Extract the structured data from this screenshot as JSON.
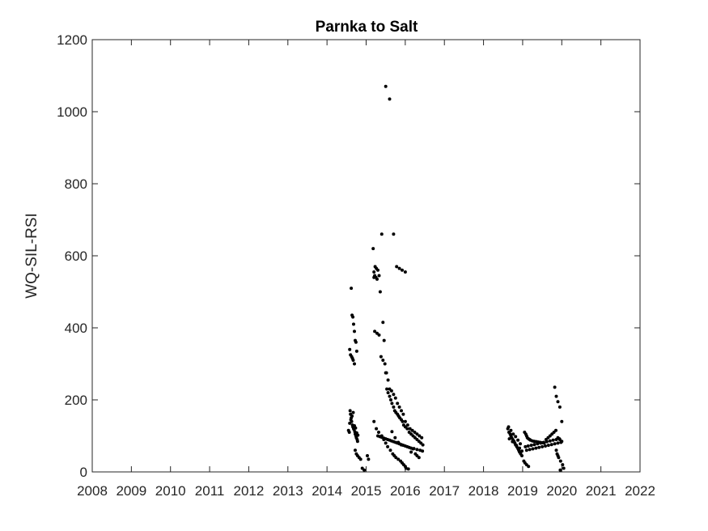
{
  "chart_data": {
    "type": "scatter",
    "title": "Parnka to Salt",
    "xlabel": "",
    "ylabel": "WQ-SIL-RSI",
    "xlim": [
      2008,
      2022
    ],
    "ylim": [
      0,
      1200
    ],
    "x_ticks": [
      "2008",
      "2009",
      "2010",
      "2011",
      "2012",
      "2013",
      "2014",
      "2015",
      "2016",
      "2017",
      "2018",
      "2019",
      "2020",
      "2021",
      "2022"
    ],
    "y_ticks": [
      "0",
      "200",
      "400",
      "600",
      "800",
      "1000",
      "1200"
    ],
    "grid": false,
    "legend": "none",
    "marker_color": "#000000",
    "series": [
      {
        "x": [
          2014.55,
          2014.57,
          2014.59,
          2014.6,
          2014.62,
          2014.63,
          2014.65,
          2014.66,
          2014.68,
          2014.69,
          2014.71,
          2014.72,
          2014.74,
          2014.75,
          2014.77,
          2014.78,
          2014.58,
          2014.61,
          2014.64,
          2014.67,
          2014.7,
          2014.73,
          2014.76,
          2014.79,
          2014.62,
          2014.64,
          2014.66,
          2014.68,
          2014.7,
          2014.72,
          2014.74,
          2014.76,
          2014.58,
          2014.6,
          2014.63,
          2014.65,
          2014.67,
          2014.7,
          2014.72,
          2014.75,
          2014.78,
          2014.82,
          2014.86,
          2014.9,
          2014.95,
          2015.03,
          2015.06,
          2015.18,
          2015.2,
          2015.22,
          2015.25,
          2015.28,
          2015.2,
          2015.23,
          2015.26,
          2015.3,
          2015.33,
          2015.36,
          2015.4,
          2015.43,
          2015.46,
          2015.5,
          2015.53,
          2015.56,
          2015.6,
          2015.63,
          2015.66,
          2015.7,
          2015.73,
          2015.76,
          2015.8,
          2015.83,
          2015.86,
          2015.9,
          2015.93,
          2015.96,
          2016.0,
          2016.05,
          2016.1,
          2016.15,
          2016.2,
          2016.25,
          2016.3,
          2016.35,
          2016.4,
          2016.45,
          2015.22,
          2015.28,
          2015.33,
          2015.38,
          2015.43,
          2015.48,
          2015.52,
          2015.56,
          2015.6,
          2015.65,
          2015.7,
          2015.75,
          2015.8,
          2015.85,
          2015.9,
          2015.95,
          2016.0,
          2016.06,
          2016.12,
          2016.18,
          2016.24,
          2016.3,
          2016.36,
          2016.42,
          2015.3,
          2015.35,
          2015.4,
          2015.45,
          2015.5,
          2015.55,
          2015.6,
          2015.65,
          2015.7,
          2015.75,
          2015.8,
          2015.85,
          2015.9,
          2015.95,
          2016.0,
          2016.05,
          2016.1,
          2016.15,
          2016.2,
          2016.3,
          2016.38,
          2016.44,
          2015.2,
          2015.26,
          2015.32,
          2015.4,
          2015.45,
          2015.5,
          2015.55,
          2015.62,
          2015.68,
          2015.72,
          2015.76,
          2015.82,
          2015.88,
          2015.92,
          2015.96,
          2016.0,
          2016.02,
          2016.08,
          2016.15,
          2016.22,
          2016.26,
          2016.3,
          2016.35,
          2015.5,
          2015.6,
          2015.7,
          2015.78,
          2015.85,
          2015.92,
          2016.0,
          2015.66,
          2015.74,
          2015.82,
          2015.9,
          2018.62,
          2018.65,
          2018.68,
          2018.7,
          2018.72,
          2018.75,
          2018.78,
          2018.8,
          2018.82,
          2018.85,
          2018.88,
          2018.9,
          2018.92,
          2018.95,
          2018.98,
          2018.64,
          2018.7,
          2018.76,
          2018.82,
          2018.88,
          2018.94,
          2018.66,
          2018.74,
          2018.84,
          2018.92,
          2018.98,
          2019.05,
          2019.08,
          2019.1,
          2019.12,
          2019.15,
          2019.18,
          2019.2,
          2019.25,
          2019.3,
          2019.35,
          2019.4,
          2019.45,
          2019.5,
          2019.55,
          2019.6,
          2019.65,
          2019.7,
          2019.75,
          2019.8,
          2019.85,
          2019.9,
          2019.95,
          2020.0,
          2019.07,
          2019.14,
          2019.22,
          2019.3,
          2019.38,
          2019.46,
          2019.54,
          2019.62,
          2019.7,
          2019.78,
          2019.86,
          2019.94,
          2019.1,
          2019.18,
          2019.26,
          2019.34,
          2019.42,
          2019.5,
          2019.58,
          2019.66,
          2019.74,
          2019.82,
          2019.9,
          2019.98,
          2019.03,
          2019.06,
          2019.1,
          2019.15,
          2019.82,
          2019.86,
          2019.9,
          2019.95,
          2020.0,
          2019.86,
          2019.88,
          2019.9,
          2019.92,
          2019.97,
          2020.02,
          2020.05,
          2019.96
        ],
        "y": [
          115,
          110,
          170,
          160,
          150,
          140,
          130,
          125,
          120,
          118,
          112,
          105,
          100,
          95,
          90,
          85,
          135,
          145,
          155,
          165,
          128,
          122,
          108,
          102,
          510,
          435,
          430,
          410,
          390,
          365,
          360,
          335,
          340,
          325,
          320,
          315,
          310,
          300,
          60,
          50,
          45,
          40,
          35,
          10,
          5,
          45,
          35,
          620,
          555,
          545,
          540,
          535,
          540,
          570,
          565,
          560,
          545,
          500,
          660,
          415,
          365,
          275,
          230,
          220,
          210,
          200,
          190,
          180,
          170,
          165,
          160,
          155,
          150,
          145,
          140,
          130,
          125,
          120,
          110,
          105,
          100,
          95,
          90,
          85,
          80,
          75,
          390,
          385,
          380,
          320,
          310,
          300,
          275,
          255,
          230,
          225,
          215,
          205,
          190,
          180,
          170,
          160,
          140,
          130,
          120,
          115,
          110,
          105,
          100,
          95,
          100,
          98,
          96,
          94,
          92,
          90,
          88,
          86,
          84,
          82,
          80,
          78,
          76,
          74,
          72,
          70,
          68,
          66,
          64,
          62,
          60,
          58,
          140,
          120,
          110,
          100,
          90,
          80,
          70,
          60,
          50,
          45,
          40,
          35,
          30,
          25,
          20,
          15,
          10,
          8,
          55,
          65,
          50,
          45,
          40,
          1070,
          1035,
          660,
          570,
          565,
          560,
          555,
          112,
          95,
          82,
          75,
          120,
          110,
          105,
          100,
          95,
          90,
          85,
          80,
          75,
          70,
          65,
          60,
          55,
          50,
          45,
          125,
          115,
          105,
          98,
          88,
          78,
          92,
          84,
          74,
          66,
          58,
          110,
          105,
          100,
          95,
          92,
          90,
          88,
          86,
          85,
          84,
          83,
          82,
          81,
          80,
          90,
          95,
          100,
          105,
          110,
          115,
          95,
          90,
          85,
          70,
          72,
          74,
          76,
          78,
          80,
          82,
          84,
          86,
          88,
          90,
          92,
          60,
          62,
          64,
          66,
          68,
          70,
          72,
          74,
          76,
          78,
          80,
          82,
          30,
          25,
          20,
          15,
          235,
          210,
          195,
          180,
          140,
          60,
          50,
          45,
          40,
          30,
          20,
          10,
          5
        ]
      }
    ]
  }
}
